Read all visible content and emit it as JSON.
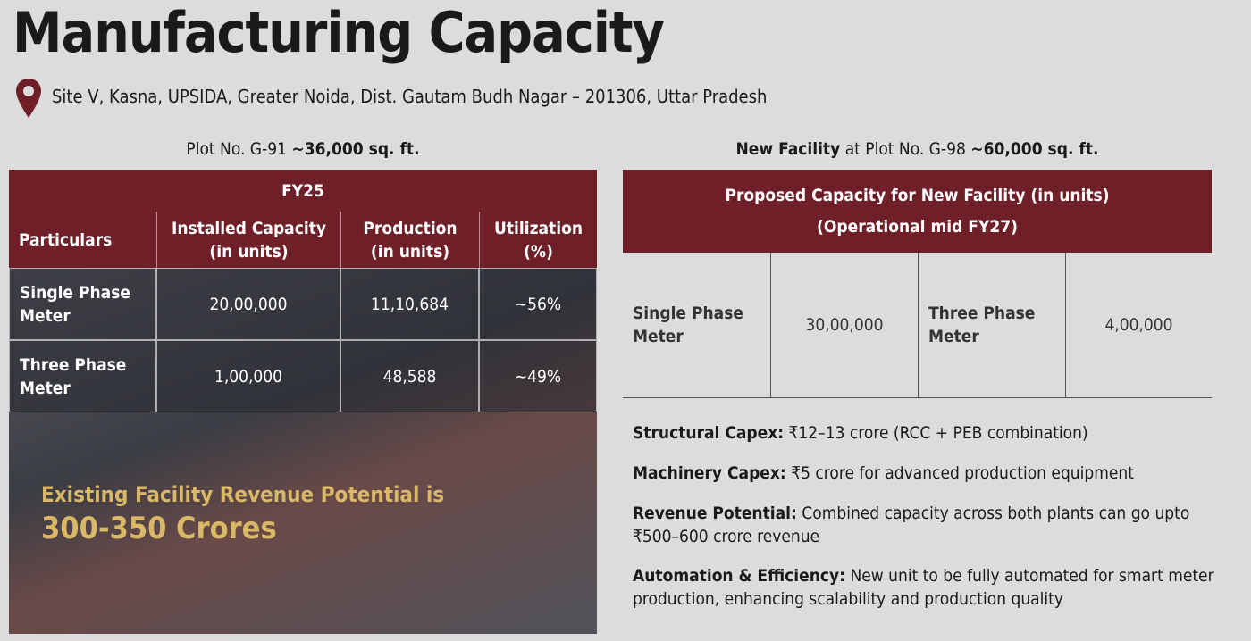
{
  "header": {
    "title": "Manufacturing Capacity",
    "location": "Site V, Kasna, UPSIDA, Greater Noida, Dist. Gautam Budh Nagar – 201306, Uttar Pradesh"
  },
  "left": {
    "caption": [
      "Plot No. G-91",
      "~36,000 sq. ft."
    ],
    "table": {
      "group_header": "FY25",
      "columns": [
        [
          "Particulars"
        ],
        [
          "Installed Capacity",
          "(in units)"
        ],
        [
          "Production",
          "(in units)"
        ],
        [
          "Utilization",
          "(%)"
        ]
      ],
      "rows": [
        [
          [
            "Single Phase",
            "Meter"
          ],
          "20,00,000",
          "11,10,684",
          "~56%"
        ],
        [
          [
            "Three Phase",
            "Meter"
          ],
          "1,00,000",
          "48,588",
          "~49%"
        ]
      ]
    },
    "revenue": [
      "Existing Facility Revenue Potential is",
      "300-350 Crores"
    ]
  },
  "right": {
    "caption": [
      "New Facility",
      "at Plot No. G-98",
      "~60,000 sq. ft."
    ],
    "table": {
      "header": [
        "Proposed Capacity for New Facility (in units)",
        "(Operational mid FY27)"
      ],
      "cells": [
        [
          "Single Phase",
          "Meter"
        ],
        "30,00,000",
        [
          "Three Phase",
          "Meter"
        ],
        "4,00,000"
      ]
    },
    "bullets": [
      {
        "label": "Structural Capex:",
        "text": "₹12–13 crore (RCC + PEB combination)"
      },
      {
        "label": "Machinery Capex:",
        "text": "₹5 crore for advanced production equipment"
      },
      {
        "label": "Revenue Potential:",
        "text": "Combined capacity across both plants can go upto ₹500–600 crore revenue"
      },
      {
        "label": "Automation & Efficiency:",
        "text": "New unit to be fully automated for smart meter production, enhancing scalability and production quality"
      }
    ]
  }
}
